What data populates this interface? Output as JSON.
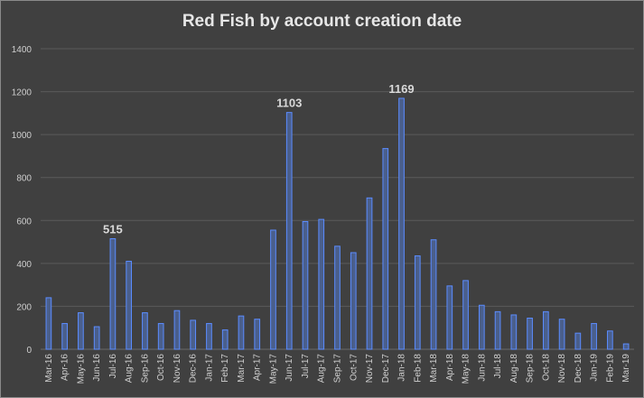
{
  "chart_data": {
    "type": "bar",
    "title": "Red Fish by account creation date",
    "xlabel": "",
    "ylabel": "",
    "ylim": [
      0,
      1400
    ],
    "yticks": [
      0,
      200,
      400,
      600,
      800,
      1000,
      1200,
      1400
    ],
    "grid": true,
    "legend": "none",
    "categories": [
      "Mar-16",
      "Apr-16",
      "May-16",
      "Jun-16",
      "Jul-16",
      "Aug-16",
      "Sep-16",
      "Oct-16",
      "Nov-16",
      "Dec-16",
      "Jan-17",
      "Feb-17",
      "Mar-17",
      "Apr-17",
      "May-17",
      "Jun-17",
      "Jul-17",
      "Aug-17",
      "Sep-17",
      "Oct-17",
      "Nov-17",
      "Dec-17",
      "Jan-18",
      "Feb-18",
      "Mar-18",
      "Apr-18",
      "May-18",
      "Jun-18",
      "Jul-18",
      "Aug-18",
      "Sep-18",
      "Oct-18",
      "Nov-18",
      "Dec-18",
      "Jan-19",
      "Feb-19",
      "Mar-19"
    ],
    "values": [
      240,
      120,
      170,
      105,
      515,
      410,
      170,
      120,
      180,
      135,
      120,
      90,
      155,
      140,
      555,
      1103,
      595,
      605,
      480,
      450,
      705,
      935,
      1169,
      435,
      510,
      295,
      320,
      205,
      175,
      160,
      145,
      175,
      140,
      75,
      120,
      85,
      25
    ],
    "data_labels": [
      {
        "category": "Jul-16",
        "text": "515"
      },
      {
        "category": "Jun-17",
        "text": "1103"
      },
      {
        "category": "Jan-18",
        "text": "1169"
      }
    ],
    "colors": {
      "bar_fill": "#4a5f8c",
      "bar_stroke": "#5b8cff",
      "grid": "#5a5a5a",
      "background": "#404040",
      "text": "#d0d0d0"
    }
  }
}
